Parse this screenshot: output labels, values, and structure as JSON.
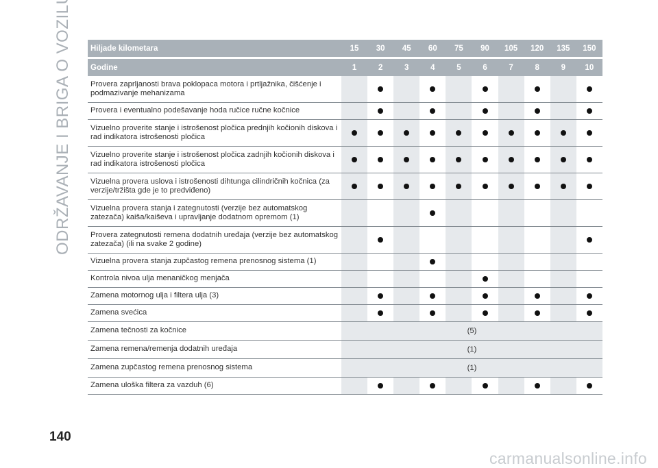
{
  "side_title": "ODRŽAVANJE I BRIGA O VOZILU",
  "page_number": "140",
  "watermark": "carmanualsonline.info",
  "table": {
    "header_km_label": "Hiljade kilometara",
    "header_km": [
      "15",
      "30",
      "45",
      "60",
      "75",
      "90",
      "105",
      "120",
      "135",
      "150"
    ],
    "header_years_label": "Godine",
    "header_years": [
      "1",
      "2",
      "3",
      "4",
      "5",
      "6",
      "7",
      "8",
      "9",
      "10"
    ],
    "rows": [
      {
        "text": "Provera zaprljanosti brava poklopaca motora i prtljažnika, čišćenje i podmazivanje mehanizama",
        "marks": [
          0,
          1,
          0,
          1,
          0,
          1,
          0,
          1,
          0,
          1
        ]
      },
      {
        "text": "Provera i eventualno podešavanje hoda ručice ručne kočnice",
        "marks": [
          0,
          1,
          0,
          1,
          0,
          1,
          0,
          1,
          0,
          1
        ]
      },
      {
        "text": "Vizuelno proverite stanje i istrošenost pločica prednjih kočionih diskova i rad indikatora istrošenosti pločica",
        "marks": [
          1,
          1,
          1,
          1,
          1,
          1,
          1,
          1,
          1,
          1
        ]
      },
      {
        "text": "Vizuelno proverite stanje i istrošenost pločica zadnjih kočionih diskova i rad indikatora istrošenosti pločica",
        "marks": [
          1,
          1,
          1,
          1,
          1,
          1,
          1,
          1,
          1,
          1
        ]
      },
      {
        "text": "Vizuelna provera uslova i istrošenosti dihtunga cilindričnih kočnica (za verzije/tržišta gde je to predviđeno)",
        "marks": [
          1,
          1,
          1,
          1,
          1,
          1,
          1,
          1,
          1,
          1
        ]
      },
      {
        "text": "Vizuelna provera stanja i zategnutosti (verzije bez automatskog zatezača) kaiša/kaiševa i upravljanje dodatnom opremom (1)",
        "marks": [
          0,
          0,
          0,
          1,
          0,
          0,
          0,
          0,
          0,
          0
        ]
      },
      {
        "text": "Provera zategnutosti remena dodatnih uređaja (verzije bez automatskog zatezača) (ili na svake 2 godine)",
        "marks": [
          0,
          1,
          0,
          0,
          0,
          0,
          0,
          0,
          0,
          1
        ]
      },
      {
        "text": "Vizuelna provera stanja zupčastog remena prenosnog sistema (1)",
        "marks": [
          0,
          0,
          0,
          1,
          0,
          0,
          0,
          0,
          0,
          0
        ]
      },
      {
        "text": "Kontrola nivoa ulja menaničkog menjača",
        "marks": [
          0,
          0,
          0,
          0,
          0,
          1,
          0,
          0,
          0,
          0
        ]
      },
      {
        "text": "Zamena motornog ulja i filtera ulja (3)",
        "marks": [
          0,
          1,
          0,
          1,
          0,
          1,
          0,
          1,
          0,
          1
        ]
      },
      {
        "text": "Zamena svećica",
        "marks": [
          0,
          1,
          0,
          1,
          0,
          1,
          0,
          1,
          0,
          1
        ]
      },
      {
        "text": "Zamena tečnosti za kočnice",
        "note": "(5)"
      },
      {
        "text": "Zamena remena/remenja dodatnih uređaja",
        "note": "(1)"
      },
      {
        "text": "Zamena zupčastog remena prenosnog sistema",
        "note": "(1)"
      },
      {
        "text": "Zamena uloška filtera za vazduh (6)",
        "marks": [
          0,
          1,
          0,
          1,
          0,
          1,
          0,
          1,
          0,
          1
        ]
      }
    ]
  },
  "colors": {
    "header_bg": "#a9b1b8",
    "band_bg": "#e6e9ec",
    "side_title": "#aab0b6",
    "mark": "#111111"
  }
}
